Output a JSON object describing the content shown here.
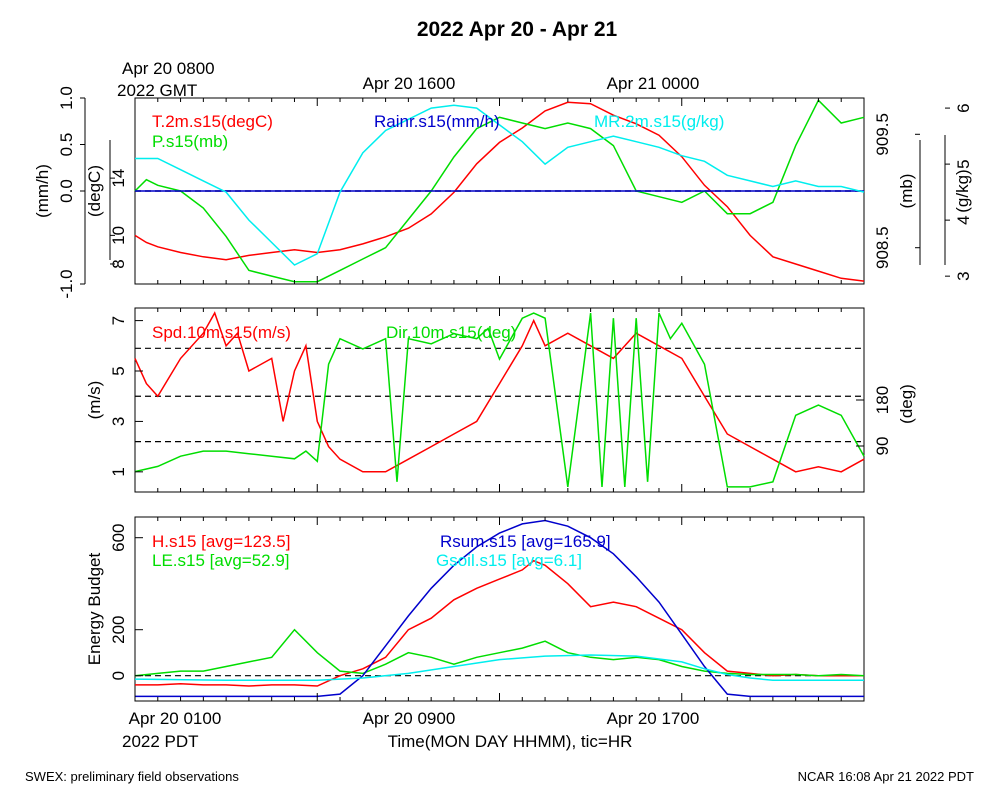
{
  "title": "2022 Apr 20 - Apr 21",
  "top_axis": {
    "gmt_label_line1": "Apr 20 0800",
    "gmt_label_line2": "2022 GMT",
    "labels": [
      "Apr 20 1600",
      "Apr 21 0000"
    ]
  },
  "bottom_axis": {
    "labels": [
      "Apr 20 0100",
      "Apr 20 0900",
      "Apr 20 1700"
    ],
    "pdt_label": "2022 PDT",
    "xlabel": "Time(MON DAY HHMM), tic=HR"
  },
  "footer": {
    "left": "SWEX: preliminary field observations",
    "right": "NCAR 16:08 Apr 21 2022 PDT"
  },
  "colors": {
    "red": "#ff0000",
    "green": "#00dd00",
    "blue": "#0000cc",
    "cyan": "#00eeee",
    "black": "#000000"
  },
  "chart_data": [
    {
      "type": "line",
      "panel": "temperature-pressure-rain-mixing",
      "x_unit": "hours after Apr 20 0100 PDT",
      "xlim": [
        0,
        32
      ],
      "axes": {
        "rain": {
          "label": "(mm/h)",
          "ticks": [
            "-1.0",
            "0.0",
            "0.5",
            "1.0"
          ],
          "ylim": [
            -1.0,
            1.0
          ]
        },
        "temp": {
          "label": "(degC)",
          "ticks": [
            "8",
            "10",
            "14"
          ],
          "ylim": [
            6.6,
            19.6
          ]
        },
        "pres": {
          "label": "(mb)",
          "ticks": [
            "908.5",
            "909.5"
          ],
          "ylim": [
            908.18,
            909.82
          ]
        },
        "mix": {
          "label": "(g/kg)",
          "ticks": [
            "3",
            "4",
            "5",
            "6"
          ],
          "ylim": [
            2.86,
            6.18
          ]
        }
      },
      "series": [
        {
          "name": "T.2m.s15(degC)",
          "color": "red",
          "axis": "temp",
          "x": [
            0,
            0.5,
            1,
            2,
            3,
            4,
            5,
            6,
            7,
            8,
            9,
            10,
            11,
            12,
            13,
            14,
            15,
            16,
            17,
            18,
            19,
            20,
            21,
            22,
            23,
            24,
            25,
            26,
            27,
            28,
            29,
            30,
            31,
            32
          ],
          "y": [
            10.0,
            9.5,
            9.2,
            8.8,
            8.5,
            8.3,
            8.6,
            8.8,
            9.0,
            8.8,
            9.0,
            9.4,
            9.9,
            10.5,
            11.5,
            13.0,
            15.0,
            16.5,
            17.5,
            18.7,
            19.3,
            19.2,
            18.4,
            17.8,
            17.0,
            15.5,
            13.5,
            12.0,
            10.0,
            8.5,
            8.0,
            7.5,
            7.0,
            6.8
          ]
        },
        {
          "name": "P.s15(mb)",
          "color": "green",
          "axis": "pres",
          "x": [
            0,
            0.5,
            1,
            2,
            3,
            4,
            5,
            6,
            7,
            8,
            9,
            10,
            11,
            12,
            13,
            14,
            15,
            16,
            17,
            18,
            19,
            20,
            21,
            22,
            23,
            24,
            25,
            26,
            27,
            28,
            29,
            30,
            31,
            32
          ],
          "y": [
            909.0,
            909.1,
            909.05,
            909.0,
            908.85,
            908.6,
            908.3,
            908.25,
            908.2,
            908.2,
            908.3,
            908.4,
            908.5,
            908.75,
            909.0,
            909.3,
            909.55,
            909.65,
            909.6,
            909.55,
            909.6,
            909.55,
            909.4,
            909.0,
            908.95,
            908.9,
            909.0,
            908.8,
            908.8,
            908.9,
            909.4,
            909.8,
            909.6,
            909.65
          ]
        },
        {
          "name": "Rainr.s15(mm/h)",
          "color": "blue",
          "axis": "rain",
          "x": [
            0,
            32
          ],
          "y": [
            0.0,
            0.0
          ]
        },
        {
          "name": "MR.2m.s15(g/kg)",
          "color": "cyan",
          "axis": "mix",
          "x": [
            0,
            1,
            2,
            3,
            4,
            5,
            6,
            7,
            8,
            9,
            10,
            11,
            12,
            13,
            14,
            15,
            16,
            17,
            18,
            19,
            20,
            21,
            22,
            23,
            24,
            25,
            26,
            27,
            28,
            29,
            30,
            31,
            32
          ],
          "y": [
            5.1,
            5.1,
            4.9,
            4.7,
            4.5,
            4.0,
            3.6,
            3.2,
            3.4,
            4.5,
            5.2,
            5.6,
            5.8,
            6.0,
            6.05,
            6.0,
            5.7,
            5.4,
            5.0,
            5.3,
            5.4,
            5.5,
            5.4,
            5.3,
            5.15,
            5.05,
            4.8,
            4.7,
            4.6,
            4.7,
            4.6,
            4.6,
            4.5
          ]
        }
      ],
      "hlines": [
        {
          "axis": "rain",
          "value": 0.0,
          "style": "dashed"
        }
      ]
    },
    {
      "type": "line",
      "panel": "wind",
      "x_unit": "hours after Apr 20 0100 PDT",
      "xlim": [
        0,
        32
      ],
      "axes": {
        "spd": {
          "label": "(m/s)",
          "ticks": [
            "1",
            "3",
            "5",
            "7"
          ],
          "ylim": [
            0.2,
            7.5
          ]
        },
        "dir": {
          "label": "(deg)",
          "ticks": [
            "90",
            "180"
          ],
          "ylim": [
            0,
            360
          ]
        }
      },
      "series": [
        {
          "name": "Spd.10m.s15(m/s)",
          "color": "red",
          "axis": "spd",
          "x": [
            0,
            0.5,
            1,
            2,
            3,
            3.5,
            4,
            4.5,
            5,
            6,
            6.5,
            7,
            7.5,
            8,
            8.5,
            9,
            10,
            11,
            12,
            13,
            14,
            15,
            16,
            17,
            17.5,
            18,
            19,
            20,
            21,
            22,
            23,
            24,
            25,
            26,
            27,
            28,
            29,
            30,
            31,
            32
          ],
          "y": [
            5.5,
            4.5,
            4.0,
            5.5,
            6.5,
            7.3,
            6.0,
            6.5,
            5.0,
            5.5,
            3.0,
            5.0,
            6.0,
            3.0,
            2.0,
            1.5,
            1.0,
            1.0,
            1.5,
            2.0,
            2.5,
            3.0,
            4.5,
            6.0,
            7.0,
            6.0,
            6.5,
            6.0,
            5.5,
            6.5,
            6.0,
            5.5,
            4.0,
            2.5,
            2.0,
            1.5,
            1.0,
            1.2,
            1.0,
            1.5
          ]
        },
        {
          "name": "Dir.10m.s15(deg)",
          "color": "green",
          "axis": "dir",
          "x": [
            0,
            1,
            2,
            3,
            4,
            5,
            6,
            7,
            7.5,
            8,
            8.5,
            9,
            10,
            11,
            11.5,
            12,
            13,
            14,
            15,
            15.5,
            16,
            17,
            17.5,
            18,
            19,
            20,
            20.5,
            21,
            21.5,
            22,
            22.5,
            23,
            23.5,
            24,
            25,
            26,
            27,
            28,
            29,
            30,
            31,
            32
          ],
          "y": [
            40,
            50,
            70,
            80,
            80,
            75,
            70,
            65,
            80,
            60,
            250,
            300,
            280,
            300,
            20,
            300,
            290,
            310,
            300,
            320,
            260,
            340,
            350,
            340,
            10,
            350,
            10,
            340,
            10,
            340,
            20,
            350,
            300,
            330,
            250,
            10,
            10,
            20,
            150,
            170,
            150,
            70
          ]
        }
      ],
      "hlines": [
        {
          "axis": "spd",
          "value": 2.2,
          "style": "dashed"
        },
        {
          "axis": "spd",
          "value": 4.0,
          "style": "dashed"
        },
        {
          "axis": "spd",
          "value": 5.9,
          "style": "dashed"
        }
      ]
    },
    {
      "type": "line",
      "panel": "energy-budget",
      "x_unit": "hours after Apr 20 0100 PDT",
      "xlim": [
        0,
        32
      ],
      "ylabel": "Energy Budget",
      "ticks": [
        "0",
        "200",
        "600"
      ],
      "ylim": [
        -110,
        690
      ],
      "series": [
        {
          "name": "H.s15 [avg=123.5]",
          "color": "red",
          "x": [
            0,
            1,
            2,
            3,
            4,
            5,
            6,
            7,
            8,
            9,
            10,
            11,
            12,
            13,
            14,
            15,
            16,
            17,
            17.5,
            18,
            19,
            20,
            21,
            22,
            23,
            24,
            25,
            26,
            27,
            28,
            29,
            30,
            31,
            32
          ],
          "y": [
            -40,
            -40,
            -35,
            -40,
            -40,
            -45,
            -40,
            -40,
            -45,
            0,
            30,
            80,
            200,
            250,
            330,
            380,
            420,
            460,
            500,
            480,
            400,
            300,
            320,
            300,
            250,
            200,
            100,
            20,
            10,
            0,
            5,
            0,
            0,
            0
          ]
        },
        {
          "name": "LE.s15 [avg=52.9]",
          "color": "green",
          "x": [
            0,
            1,
            2,
            3,
            4,
            5,
            6,
            7,
            8,
            9,
            10,
            11,
            12,
            13,
            14,
            15,
            16,
            17,
            18,
            19,
            20,
            21,
            22,
            23,
            24,
            25,
            26,
            27,
            28,
            29,
            30,
            31,
            32
          ],
          "y": [
            0,
            10,
            20,
            20,
            40,
            60,
            80,
            200,
            100,
            20,
            10,
            50,
            100,
            80,
            50,
            80,
            100,
            120,
            150,
            100,
            80,
            70,
            80,
            70,
            40,
            20,
            10,
            5,
            5,
            5,
            0,
            5,
            0
          ]
        },
        {
          "name": "Rsum.s15 [avg=165.9]",
          "color": "blue",
          "x": [
            0,
            8,
            9,
            10,
            11,
            12,
            13,
            14,
            15,
            16,
            17,
            18,
            19,
            20,
            21,
            22,
            23,
            24,
            25,
            26,
            27,
            28,
            32
          ],
          "y": [
            -90,
            -90,
            -80,
            0,
            130,
            260,
            380,
            480,
            560,
            620,
            660,
            675,
            650,
            600,
            530,
            430,
            320,
            180,
            40,
            -80,
            -90,
            -90,
            -90
          ]
        },
        {
          "name": "Gsoil.s15 [avg=6.1]",
          "color": "cyan",
          "x": [
            0,
            4,
            8,
            10,
            12,
            14,
            16,
            18,
            20,
            22,
            24,
            25,
            26,
            27,
            28,
            32
          ],
          "y": [
            -15,
            -20,
            -20,
            -10,
            10,
            40,
            70,
            85,
            90,
            85,
            60,
            30,
            5,
            -10,
            -20,
            -20
          ]
        }
      ],
      "hlines": [
        {
          "value": 0,
          "style": "dashed"
        }
      ]
    }
  ]
}
